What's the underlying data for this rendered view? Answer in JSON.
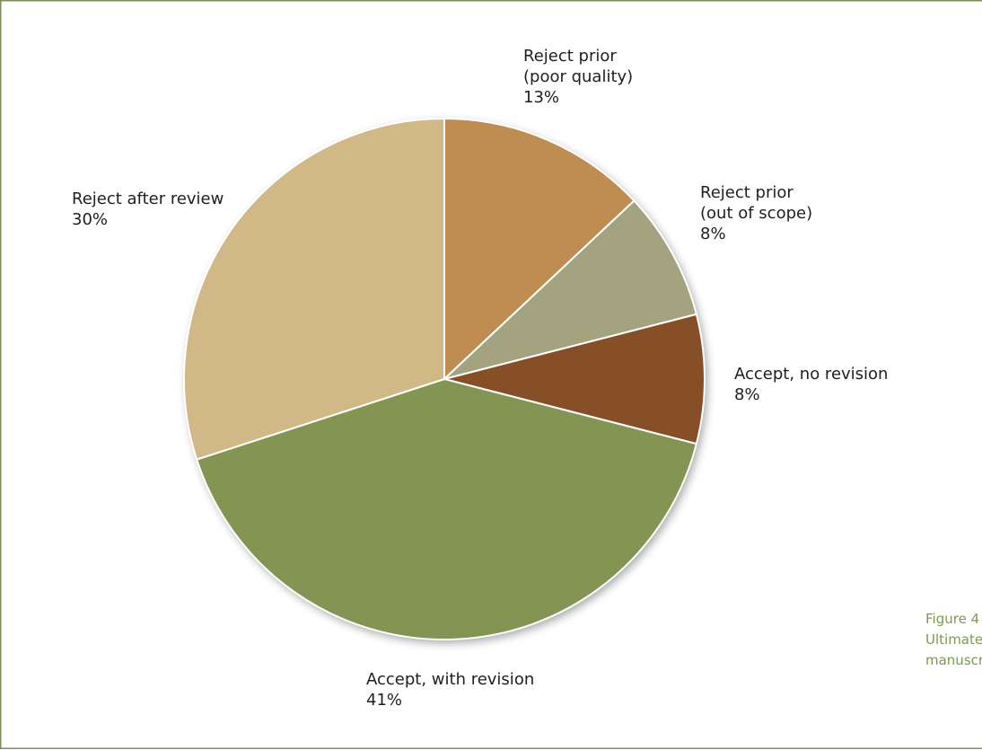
{
  "chart_data": {
    "type": "pie",
    "start_angle_deg": 0,
    "direction": "clockwise",
    "slices": [
      {
        "label_lines": [
          "Reject prior",
          "(poor quality)"
        ],
        "value_label": "13%",
        "value": 13,
        "color": "#bf8c52"
      },
      {
        "label_lines": [
          "Reject prior",
          "(out of scope)"
        ],
        "value_label": "8%",
        "value": 8,
        "color": "#a3a47f"
      },
      {
        "label_lines": [
          "Accept, no revision"
        ],
        "value_label": "8%",
        "value": 8,
        "color": "#874f27"
      },
      {
        "label_lines": [
          "Accept, with revision"
        ],
        "value_label": "41%",
        "value": 41,
        "color": "#839453"
      },
      {
        "label_lines": [
          "Reject after review"
        ],
        "value_label": "30%",
        "value": 30,
        "color": "#d0b986"
      }
    ]
  },
  "caption": {
    "lines": [
      "Figure 4",
      "Ultimate",
      "manuscript"
    ],
    "color": "#7c9a52"
  },
  "frame_color": "#7a9058"
}
